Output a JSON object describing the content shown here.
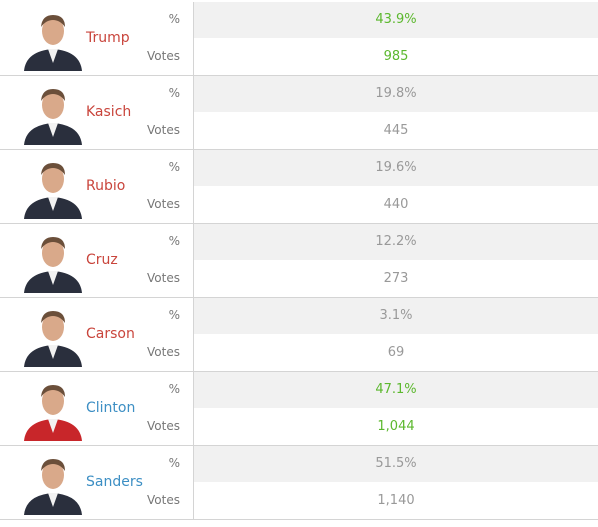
{
  "candidates": [
    {
      "name": "Trump",
      "name_color": "#c9453c",
      "pct_label": "%",
      "pct": "43.9%",
      "votes_label": "Votes",
      "votes": "985",
      "value_color": "#5cb82e"
    },
    {
      "name": "Kasich",
      "name_color": "#c9453c",
      "pct_label": "%",
      "pct": "19.8%",
      "votes_label": "Votes",
      "votes": "445",
      "value_color": "#999999"
    },
    {
      "name": "Rubio",
      "name_color": "#c9453c",
      "pct_label": "%",
      "pct": "19.6%",
      "votes_label": "Votes",
      "votes": "440",
      "value_color": "#999999"
    },
    {
      "name": "Cruz",
      "name_color": "#c9453c",
      "pct_label": "%",
      "pct": "12.2%",
      "votes_label": "Votes",
      "votes": "273",
      "value_color": "#999999"
    },
    {
      "name": "Carson",
      "name_color": "#c9453c",
      "pct_label": "%",
      "pct": "3.1%",
      "votes_label": "Votes",
      "votes": "69",
      "value_color": "#999999"
    },
    {
      "name": "Clinton",
      "name_color": "#3d8fc4",
      "pct_label": "%",
      "pct": "47.1%",
      "votes_label": "Votes",
      "votes": "1,044",
      "value_color": "#5cb82e"
    },
    {
      "name": "Sanders",
      "name_color": "#3d8fc4",
      "pct_label": "%",
      "pct": "51.5%",
      "votes_label": "Votes",
      "votes": "1,140",
      "value_color": "#999999"
    }
  ]
}
